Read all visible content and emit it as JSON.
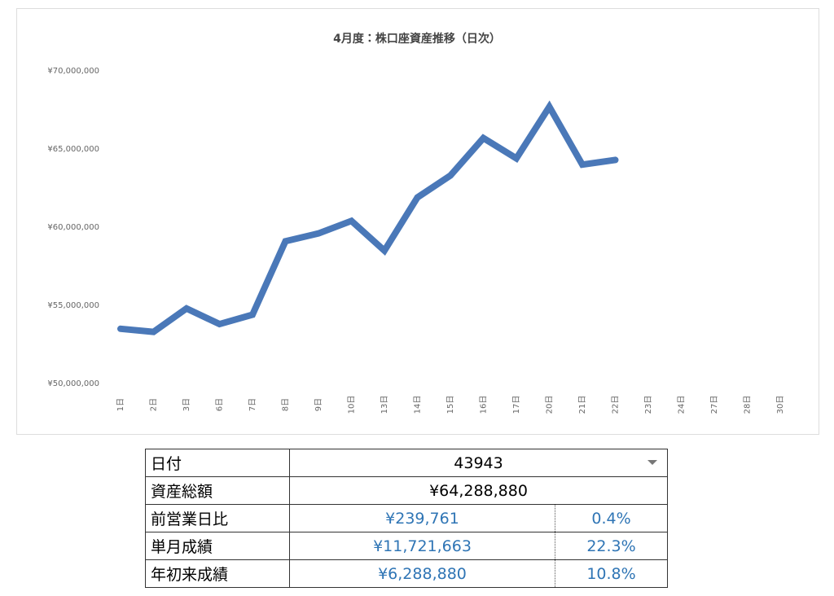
{
  "chart_data": {
    "type": "line",
    "title": "4月度：株口座資産推移（日次）",
    "categories": [
      "1日",
      "2日",
      "3日",
      "6日",
      "7日",
      "8日",
      "9日",
      "10日",
      "13日",
      "14日",
      "15日",
      "16日",
      "17日",
      "20日",
      "21日",
      "22日",
      "23日",
      "24日",
      "27日",
      "28日",
      "30日"
    ],
    "values": [
      53500000,
      53300000,
      54800000,
      53800000,
      54400000,
      59100000,
      59600000,
      60400000,
      58500000,
      61900000,
      63300000,
      65700000,
      64400000,
      67700000,
      64000000,
      64300000,
      null,
      null,
      null,
      null,
      null
    ],
    "color": "#4a78b8",
    "ylim": [
      50000000,
      70000000
    ],
    "yticks": [
      {
        "value": 50000000,
        "label": "¥50,000,000"
      },
      {
        "value": 55000000,
        "label": "¥55,000,000"
      },
      {
        "value": 60000000,
        "label": "¥60,000,000"
      },
      {
        "value": 65000000,
        "label": "¥65,000,000"
      },
      {
        "value": 70000000,
        "label": "¥70,000,000"
      }
    ],
    "grid": false
  },
  "table": {
    "rows": [
      [
        "日付",
        "43943"
      ],
      [
        "資産総額",
        "¥64,288,880"
      ],
      [
        "前営業日比",
        "¥239,761",
        "0.4%"
      ],
      [
        "単月成績",
        "¥11,721,663",
        "22.3%"
      ],
      [
        "年初来成績",
        "¥6,288,880",
        "10.8%"
      ]
    ]
  }
}
